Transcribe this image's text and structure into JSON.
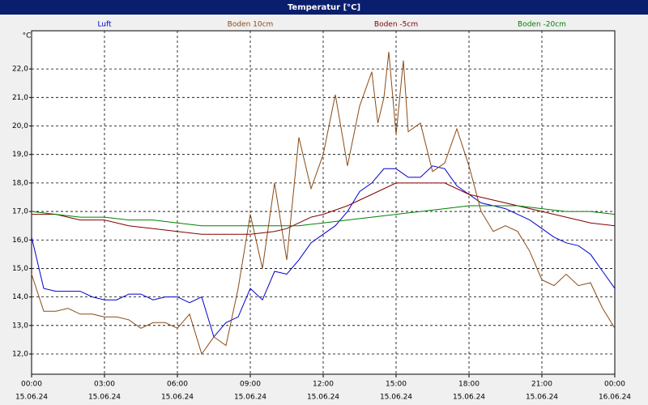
{
  "chart_data": {
    "type": "line",
    "title": "Temperatur [°C]",
    "y_unit": "°C",
    "xlim": [
      0,
      24
    ],
    "ylim": [
      11.29,
      23.34
    ],
    "grid": true,
    "xticks": [
      {
        "value": 0,
        "label": [
          "00:00",
          "15.06.24"
        ]
      },
      {
        "value": 3,
        "label": [
          "03:00",
          "15.06.24"
        ]
      },
      {
        "value": 6,
        "label": [
          "06:00",
          "15.06.24"
        ]
      },
      {
        "value": 9,
        "label": [
          "09:00",
          "15.06.24"
        ]
      },
      {
        "value": 12,
        "label": [
          "12:00",
          "15.06.24"
        ]
      },
      {
        "value": 15,
        "label": [
          "15:00",
          "15.06.24"
        ]
      },
      {
        "value": 18,
        "label": [
          "18:00",
          "15.06.24"
        ]
      },
      {
        "value": 21,
        "label": [
          "21:00",
          "15.06.24"
        ]
      },
      {
        "value": 24,
        "label": [
          "00:00",
          "16.06.24"
        ]
      }
    ],
    "yticks": [
      {
        "value": 12,
        "label": "12,0"
      },
      {
        "value": 13,
        "label": "13,0"
      },
      {
        "value": 14,
        "label": "14,0"
      },
      {
        "value": 15,
        "label": "15,0"
      },
      {
        "value": 16,
        "label": "16,0"
      },
      {
        "value": 17,
        "label": "17,0"
      },
      {
        "value": 18,
        "label": "18,0"
      },
      {
        "value": 19,
        "label": "19,0"
      },
      {
        "value": 20,
        "label": "20,0"
      },
      {
        "value": 21,
        "label": "21,0"
      },
      {
        "value": 22,
        "label": "22,0"
      }
    ],
    "series": [
      {
        "name": "Luft",
        "color": "#0000cc",
        "x": [
          0,
          0.5,
          1,
          2,
          2.5,
          3,
          3.5,
          4,
          4.5,
          5,
          5.5,
          6,
          6.5,
          7,
          7.5,
          8,
          8.5,
          9,
          9.5,
          10,
          10.5,
          11,
          11.5,
          12,
          12.5,
          13,
          13.5,
          14,
          14.5,
          15,
          15.5,
          16,
          16.5,
          17,
          17.5,
          18,
          18.5,
          19,
          19.5,
          20,
          20.5,
          21,
          21.5,
          22,
          22.5,
          23,
          23.5,
          24
        ],
        "values": [
          16.1,
          14.3,
          14.2,
          14.2,
          14.0,
          13.9,
          13.9,
          14.1,
          14.1,
          13.9,
          14.0,
          14.0,
          13.8,
          14.0,
          12.6,
          13.1,
          13.3,
          14.3,
          13.9,
          14.9,
          14.8,
          15.3,
          15.9,
          16.2,
          16.5,
          17.0,
          17.7,
          18.0,
          18.5,
          18.5,
          18.2,
          18.2,
          18.6,
          18.5,
          17.9,
          17.6,
          17.3,
          17.2,
          17.1,
          16.9,
          16.7,
          16.4,
          16.1,
          15.9,
          15.8,
          15.5,
          14.9,
          14.3
        ]
      },
      {
        "name": "Boden 10cm",
        "color": "#8b4a14",
        "x": [
          0,
          0.5,
          1,
          1.5,
          2,
          2.5,
          3,
          3.5,
          4,
          4.5,
          5,
          5.5,
          6,
          6.5,
          7,
          7.5,
          8,
          8.5,
          9,
          9.5,
          10,
          10.5,
          11,
          11.5,
          12,
          12.5,
          13,
          13.5,
          14,
          14.25,
          14.5,
          14.7,
          15,
          15.3,
          15.5,
          16,
          16.5,
          17,
          17.5,
          18,
          18.5,
          19,
          19.5,
          20,
          20.5,
          21,
          21.5,
          22,
          22.5,
          23,
          23.5,
          24
        ],
        "values": [
          14.8,
          13.5,
          13.5,
          13.6,
          13.4,
          13.4,
          13.3,
          13.3,
          13.2,
          12.9,
          13.1,
          13.1,
          12.9,
          13.4,
          12.0,
          12.6,
          12.3,
          14.3,
          16.9,
          15.0,
          18.0,
          15.3,
          19.6,
          17.8,
          19.0,
          21.1,
          18.6,
          20.7,
          21.9,
          20.1,
          21.0,
          22.6,
          19.7,
          22.3,
          19.8,
          20.1,
          18.4,
          18.7,
          19.9,
          18.6,
          17.0,
          16.3,
          16.5,
          16.3,
          15.6,
          14.6,
          14.4,
          14.8,
          14.4,
          14.5,
          13.6,
          12.9
        ]
      },
      {
        "name": "Boden -5cm",
        "color": "#800000",
        "x": [
          0,
          1,
          2,
          3,
          4,
          5,
          6,
          7,
          8,
          9,
          10,
          10.5,
          11,
          11.5,
          12,
          13,
          14,
          15,
          16,
          17,
          18,
          19,
          20,
          21,
          22,
          23,
          24
        ],
        "values": [
          16.9,
          16.9,
          16.7,
          16.7,
          16.5,
          16.4,
          16.3,
          16.2,
          16.2,
          16.2,
          16.3,
          16.4,
          16.6,
          16.8,
          16.9,
          17.2,
          17.6,
          18.0,
          18.0,
          18.0,
          17.6,
          17.4,
          17.2,
          17.0,
          16.8,
          16.6,
          16.5
        ]
      },
      {
        "name": "Boden -20cm",
        "color": "#008000",
        "x": [
          0,
          1,
          2,
          3,
          4,
          5,
          6,
          7,
          8,
          9,
          10,
          11,
          12,
          13,
          14,
          15,
          16,
          17,
          18,
          19,
          20,
          21,
          22,
          23,
          24
        ],
        "values": [
          17.0,
          16.9,
          16.8,
          16.8,
          16.7,
          16.7,
          16.6,
          16.5,
          16.5,
          16.5,
          16.5,
          16.5,
          16.6,
          16.7,
          16.8,
          16.9,
          17.0,
          17.1,
          17.2,
          17.2,
          17.2,
          17.1,
          17.0,
          17.0,
          16.9
        ]
      }
    ]
  }
}
